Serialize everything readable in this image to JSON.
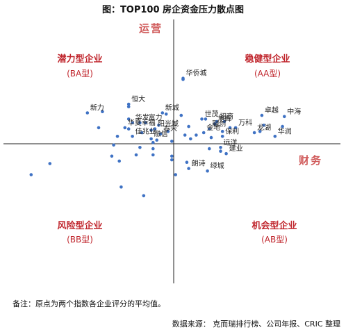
{
  "page": {
    "title": "图：TOP100 房企资金压力散点图",
    "note": "备注：原点为两个指数各企业评分的平均值。",
    "source": "数据来源： 克而瑞排行榜、公司年报、CRIC 整理"
  },
  "chart_data": {
    "type": "scatter",
    "title": "图：TOP100 房企资金压力散点图",
    "xlabel": "财务",
    "ylabel": "运营",
    "xlim": [
      -10,
      10
    ],
    "ylim": [
      -10,
      10
    ],
    "grid": false,
    "quadrants": [
      {
        "id": "AA",
        "name": "稳健型企业",
        "code": "(AA型)"
      },
      {
        "id": "BA",
        "name": "潜力型企业",
        "code": "(BA型)"
      },
      {
        "id": "BB",
        "name": "风险型企业",
        "code": "(BB型)"
      },
      {
        "id": "AB",
        "name": "机会型企业",
        "code": "(AB型)"
      }
    ],
    "labeled_points": [
      {
        "label": "华侨城",
        "x": 0.5,
        "y": 5.3
      },
      {
        "label": "恒大",
        "x": -2.4,
        "y": 3.2
      },
      {
        "label": "新力",
        "x": -4.6,
        "y": 2.5
      },
      {
        "label": "新城",
        "x": -0.6,
        "y": 2.5
      },
      {
        "label": "世茂",
        "x": 1.5,
        "y": 2.0
      },
      {
        "label": "招商",
        "x": 2.3,
        "y": 1.8
      },
      {
        "label": "旭辉",
        "x": 2.2,
        "y": 1.6
      },
      {
        "label": "融创",
        "x": 1.9,
        "y": 1.2
      },
      {
        "label": "金地",
        "x": 1.6,
        "y": 0.9
      },
      {
        "label": "绿城",
        "x": 1.8,
        "y": -2.2
      },
      {
        "label": "保利",
        "x": 2.6,
        "y": 0.6
      },
      {
        "label": "万科",
        "x": 3.3,
        "y": 1.3
      },
      {
        "label": "远洋",
        "x": 2.5,
        "y": -0.3
      },
      {
        "label": "建业",
        "x": 2.8,
        "y": -0.8
      },
      {
        "label": "朗诗",
        "x": 0.8,
        "y": -2.0
      },
      {
        "label": "中海",
        "x": 5.9,
        "y": 2.2
      },
      {
        "label": "卓越",
        "x": 4.7,
        "y": 2.3
      },
      {
        "label": "龙湖",
        "x": 4.3,
        "y": 0.9
      },
      {
        "label": "华润",
        "x": 5.4,
        "y": 0.6
      },
      {
        "label": "华夏幸福",
        "x": -2.6,
        "y": 1.3
      },
      {
        "label": "华发",
        "x": -2.2,
        "y": 1.7
      },
      {
        "label": "富力",
        "x": -1.5,
        "y": 1.7
      },
      {
        "label": "阳光城",
        "x": -1.0,
        "y": 1.2
      },
      {
        "label": "佳兆业",
        "x": -2.2,
        "y": 0.6
      },
      {
        "label": "融信",
        "x": -1.2,
        "y": 0.4
      },
      {
        "label": "泰禾",
        "x": -0.7,
        "y": 0.8
      }
    ],
    "unlabeled_points": [
      {
        "x": 0.5,
        "y": 5.2
      },
      {
        "x": -2.4,
        "y": 3.0
      },
      {
        "x": -0.4,
        "y": 2.4
      },
      {
        "x": -3.8,
        "y": 2.6
      },
      {
        "x": 0.4,
        "y": 2.3
      },
      {
        "x": -2.4,
        "y": 2.0
      },
      {
        "x": -1.8,
        "y": 1.7
      },
      {
        "x": -0.8,
        "y": 1.5
      },
      {
        "x": 0.8,
        "y": 1.4
      },
      {
        "x": -2.4,
        "y": 1.2
      },
      {
        "x": -4.0,
        "y": 1.3
      },
      {
        "x": -1.2,
        "y": 1.1
      },
      {
        "x": -1.7,
        "y": 0.9
      },
      {
        "x": -0.3,
        "y": 1.0
      },
      {
        "x": 1.7,
        "y": 2.0
      },
      {
        "x": 2.7,
        "y": 1.8
      },
      {
        "x": 3.0,
        "y": 1.3
      },
      {
        "x": 2.6,
        "y": 1.0
      },
      {
        "x": 4.8,
        "y": 1.5
      },
      {
        "x": 5.8,
        "y": 1.4
      },
      {
        "x": 4.6,
        "y": 1.0
      },
      {
        "x": 1.2,
        "y": 0.7
      },
      {
        "x": 0.6,
        "y": 0.7
      },
      {
        "x": -3.0,
        "y": 0.6
      },
      {
        "x": -0.9,
        "y": 0.3
      },
      {
        "x": 0.9,
        "y": 0.4
      },
      {
        "x": 2.0,
        "y": 0.5
      },
      {
        "x": -1.1,
        "y": 0.1
      },
      {
        "x": -0.1,
        "y": 0.2
      },
      {
        "x": -3.2,
        "y": -0.1
      },
      {
        "x": -1.8,
        "y": -0.3
      },
      {
        "x": -1.1,
        "y": -0.4
      },
      {
        "x": 1.9,
        "y": -0.4
      },
      {
        "x": 2.5,
        "y": -0.6
      },
      {
        "x": -2.0,
        "y": -0.9
      },
      {
        "x": -1.1,
        "y": -0.9
      },
      {
        "x": -3.3,
        "y": -1.0
      },
      {
        "x": -0.1,
        "y": -1.0
      },
      {
        "x": -2.9,
        "y": -1.4
      },
      {
        "x": -6.6,
        "y": -1.6
      },
      {
        "x": -0.1,
        "y": -1.3
      },
      {
        "x": 0.7,
        "y": -1.5
      },
      {
        "x": -7.6,
        "y": -2.5
      },
      {
        "x": 0.1,
        "y": -2.5
      },
      {
        "x": -2.8,
        "y": -3.5
      },
      {
        "x": -1.6,
        "y": -4.2
      }
    ]
  }
}
